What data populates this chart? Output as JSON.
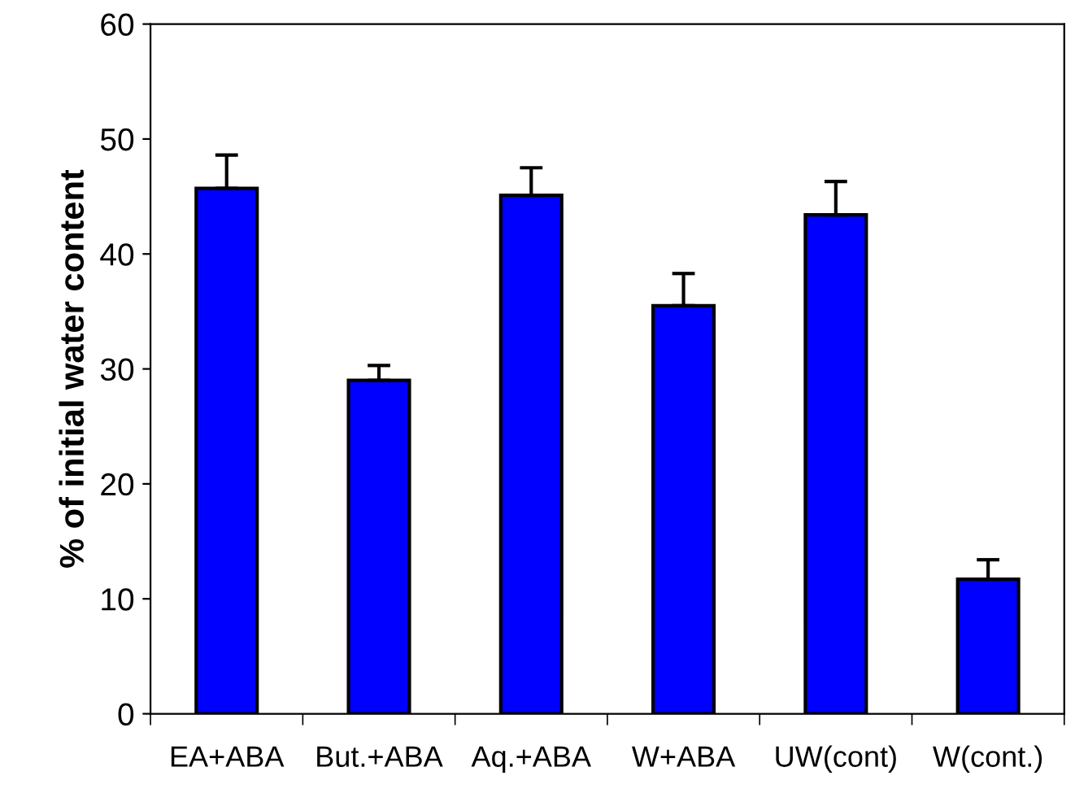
{
  "chart_data": {
    "type": "bar",
    "ylabel": "% of initial water content",
    "categories": [
      "EA+ABA",
      "But.+ABA",
      "Aq.+ABA",
      "W+ABA",
      "UW(cont)",
      "W(cont.)"
    ],
    "values": [
      45.7,
      29.0,
      45.1,
      35.5,
      43.4,
      11.7
    ],
    "errors": [
      [
        45.7,
        48.6
      ],
      [
        29.0,
        30.3
      ],
      [
        45.1,
        47.5
      ],
      [
        35.5,
        38.3
      ],
      [
        43.4,
        46.3
      ],
      [
        11.7,
        13.4
      ]
    ],
    "color": "#0000ff",
    "ylim": [
      0,
      60
    ],
    "yticks": [
      0,
      10,
      20,
      30,
      40,
      50,
      60
    ],
    "grid": false,
    "legend": false
  }
}
